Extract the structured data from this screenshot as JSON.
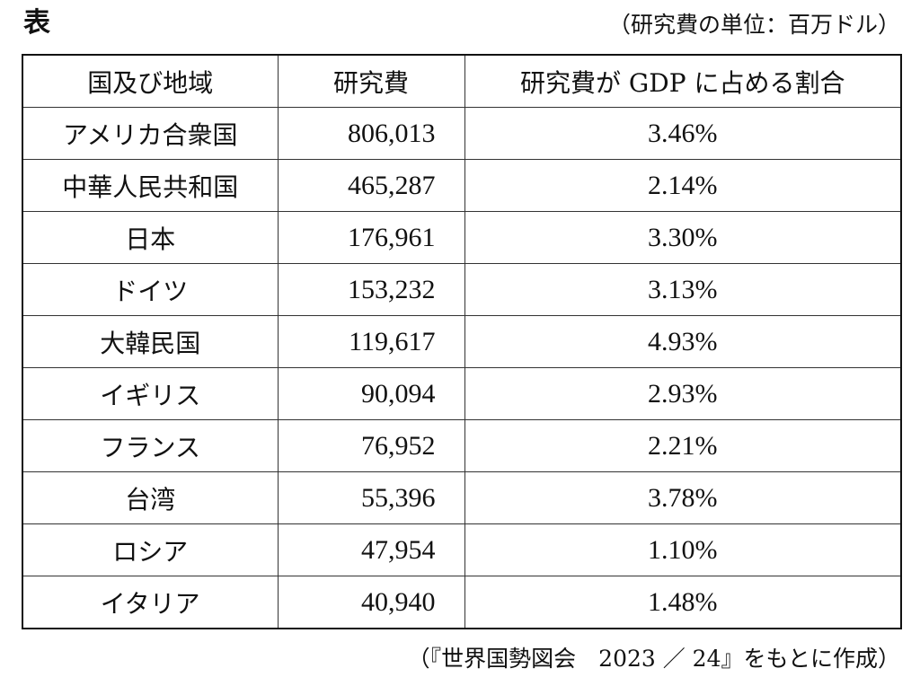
{
  "heading": "表",
  "unit_note": "（研究費の単位：百万ドル）",
  "table": {
    "headers": [
      "国及び地域",
      "研究費",
      "研究費が GDP に占める割合"
    ],
    "rows": [
      {
        "country": "アメリカ合衆国",
        "cost": "806,013",
        "ratio": "3.46%"
      },
      {
        "country": "中華人民共和国",
        "cost": "465,287",
        "ratio": "2.14%"
      },
      {
        "country": "日本",
        "cost": "176,961",
        "ratio": "3.30%"
      },
      {
        "country": "ドイツ",
        "cost": "153,232",
        "ratio": "3.13%"
      },
      {
        "country": "大韓民国",
        "cost": "119,617",
        "ratio": "4.93%"
      },
      {
        "country": "イギリス",
        "cost": "90,094",
        "ratio": "2.93%"
      },
      {
        "country": "フランス",
        "cost": "76,952",
        "ratio": "2.21%"
      },
      {
        "country": "台湾",
        "cost": "55,396",
        "ratio": "3.78%"
      },
      {
        "country": "ロシア",
        "cost": "47,954",
        "ratio": "1.10%"
      },
      {
        "country": "イタリア",
        "cost": "40,940",
        "ratio": "1.48%"
      }
    ]
  },
  "source_note": "（『世界国勢図会　2023 ／ 24』をもとに作成）"
}
